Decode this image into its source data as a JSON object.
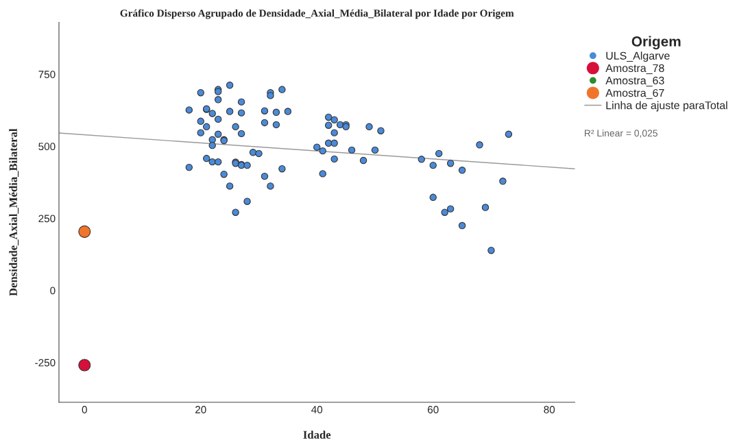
{
  "chart_data": {
    "type": "scatter",
    "title": "Gráfico Disperso Agrupado de Densidade_Axial_Média_Bilateral por Idade por Origem",
    "xlabel": "Idade",
    "ylabel": "Densidade_Axial_Média_Bilateral",
    "legend_title": "Origem",
    "legend": "top right",
    "grid": false,
    "marker": "circle",
    "xlim": [
      -4.4,
      84.4
    ],
    "xticks": [
      0,
      20,
      40,
      60,
      80
    ],
    "ylim": [
      -388,
      930
    ],
    "yticks": [
      {
        "value": -250,
        "label": "-250"
      },
      0,
      250,
      500,
      750
    ],
    "annotations": [
      "R² Linear = 0,025"
    ],
    "series": [
      {
        "name": "ULS_Algarve",
        "color": "#4a8ad8",
        "x": [
          18,
          18,
          20,
          20,
          20,
          21,
          21,
          21,
          21,
          22,
          22,
          22,
          22,
          23,
          23,
          23,
          23,
          23,
          23,
          24,
          24,
          24,
          25,
          25,
          25,
          26,
          26,
          26,
          26,
          27,
          27,
          27,
          27,
          27,
          28,
          28,
          29,
          30,
          31,
          31,
          31,
          32,
          32,
          32,
          33,
          33,
          34,
          34,
          35,
          40,
          41,
          41,
          42,
          42,
          42,
          43,
          43,
          43,
          43,
          44,
          45,
          45,
          46,
          48,
          49,
          50,
          51,
          58,
          60,
          60,
          61,
          62,
          63,
          63,
          65,
          65,
          68,
          69,
          70,
          72,
          73
        ],
        "values": [
          626,
          427,
          686,
          587,
          547,
          628,
          630,
          568,
          458,
          614,
          523,
          503,
          446,
          697,
          690,
          662,
          594,
          542,
          446,
          523,
          520,
          403,
          712,
          621,
          362,
          568,
          445,
          441,
          271,
          654,
          616,
          544,
          437,
          434,
          434,
          309,
          479,
          475,
          623,
          582,
          396,
          686,
          676,
          362,
          618,
          575,
          697,
          422,
          621,
          497,
          484,
          405,
          601,
          573,
          511,
          592,
          547,
          511,
          456,
          575,
          575,
          568,
          487,
          451,
          568,
          487,
          554,
          455,
          434,
          323,
          475,
          271,
          441,
          283,
          417,
          225,
          505,
          288,
          139,
          379,
          542
        ]
      },
      {
        "name": "Amostra_78",
        "color": "#d5103a",
        "x": [
          0
        ],
        "values": [
          -259
        ]
      },
      {
        "name": "Amostra_63",
        "color": "#2e8b2e"
      },
      {
        "name": "Amostra_67",
        "color": "#f0742c",
        "x": [
          0
        ],
        "values": [
          204
        ]
      },
      {
        "name": "Linha de ajuste paraTotal",
        "type": "line",
        "marker": "none",
        "color": "#999999",
        "x": [
          -4.4,
          84.4
        ],
        "values": [
          546,
          422
        ]
      }
    ]
  }
}
